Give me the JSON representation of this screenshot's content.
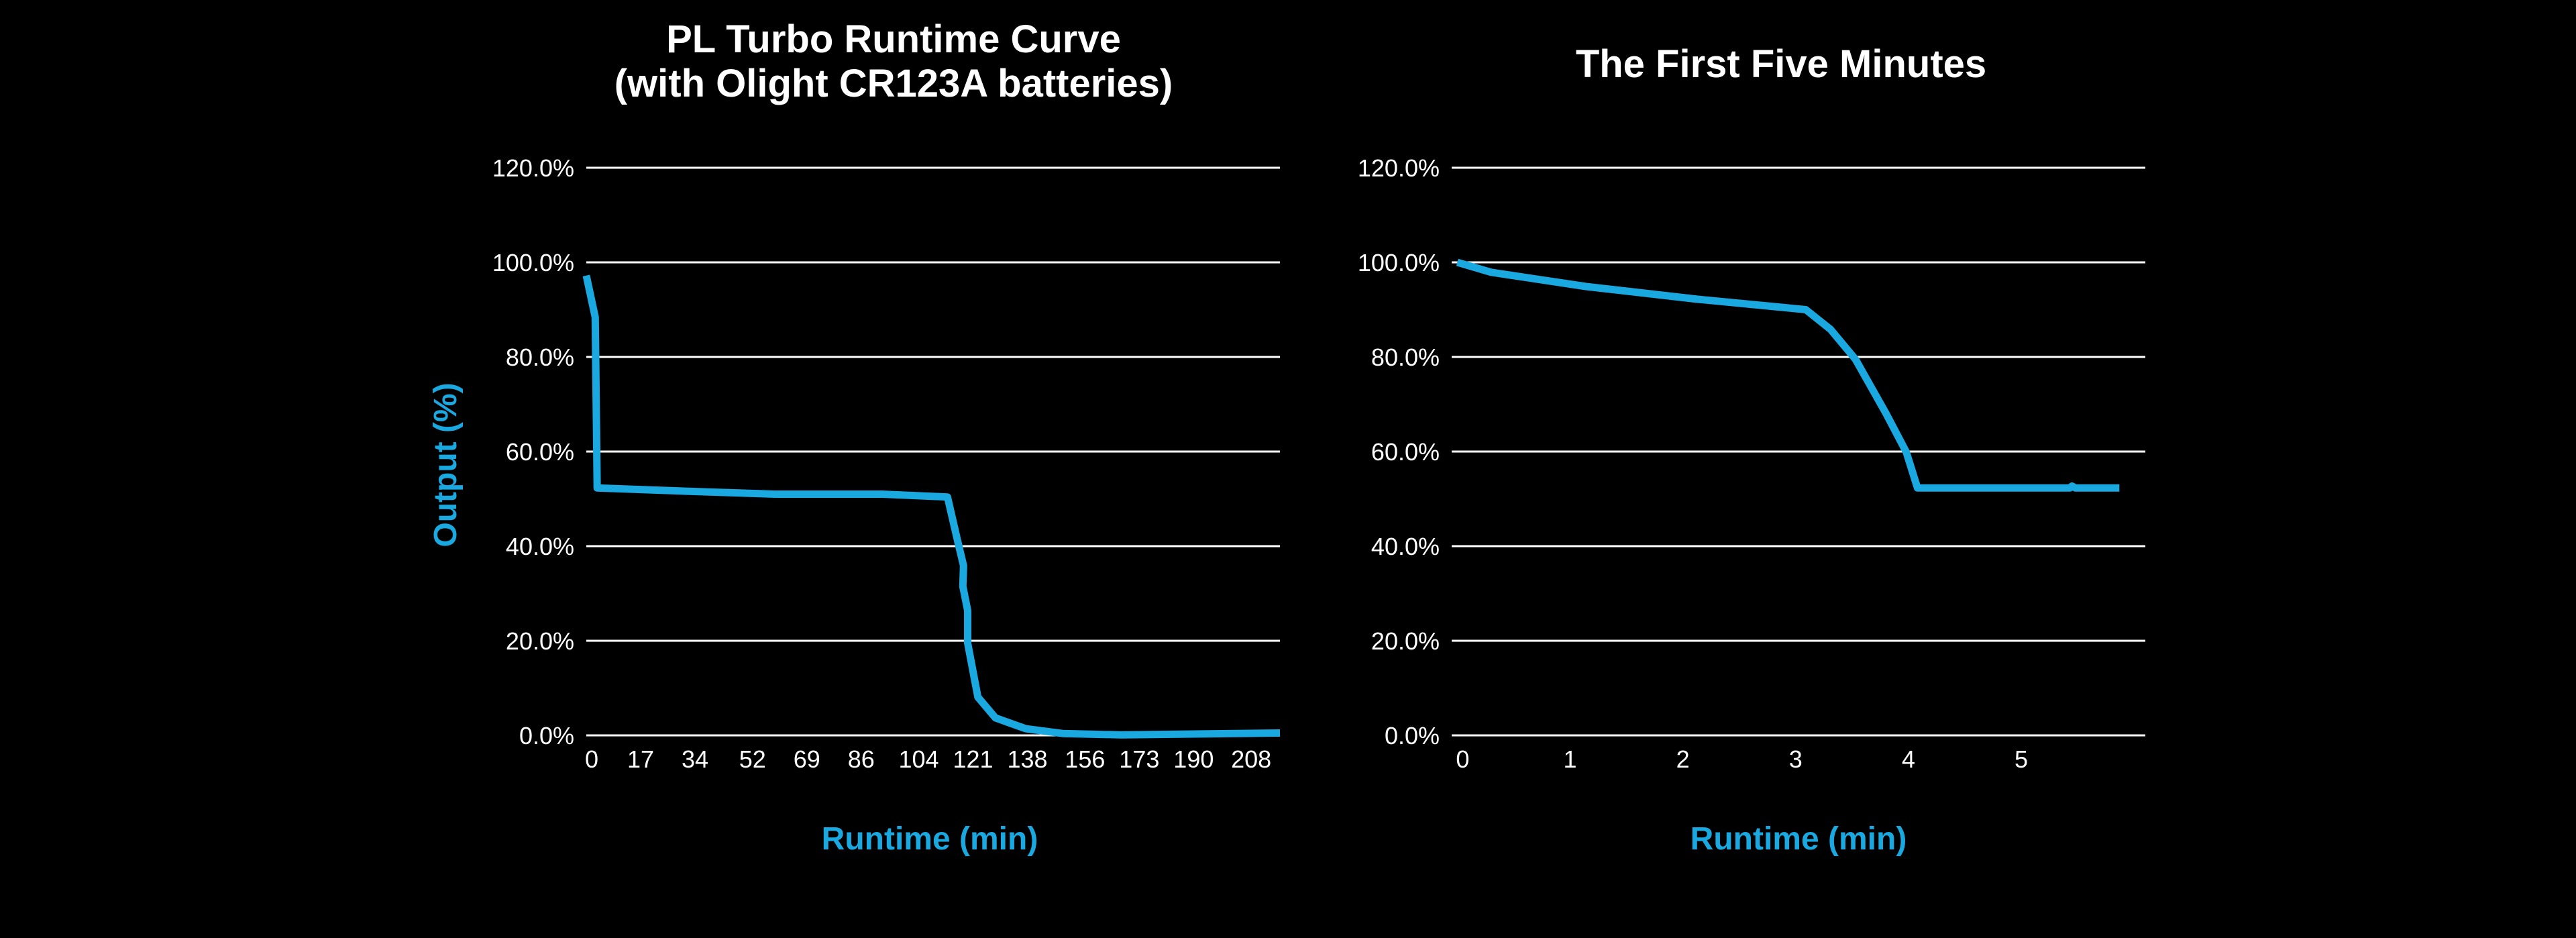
{
  "colors": {
    "background": "#000000",
    "series": "#19a9e0",
    "grid": "#ffffff",
    "text": "#ffffff"
  },
  "chart_data": [
    {
      "type": "line",
      "title": [
        "PL Turbo Runtime Curve",
        "(with Olight CR123A batteries)"
      ],
      "xlabel": "Runtime (min)",
      "ylabel": "Output (%)",
      "xlim": [
        0,
        217
      ],
      "ylim": [
        0,
        120
      ],
      "grid": true,
      "x_ticks": [
        0,
        17,
        34,
        52,
        69,
        86,
        104,
        121,
        138,
        156,
        173,
        190,
        208
      ],
      "y_ticks": [
        "0.0%",
        "20.0%",
        "40.0%",
        "60.0%",
        "80.0%",
        "100.0%",
        "120.0%"
      ],
      "series": [
        {
          "name": "Output",
          "x": [
            0,
            2.8,
            3.4,
            36,
            59,
            92.5,
            113,
            116,
            118,
            117.8,
            119.3,
            119.3,
            122.5,
            128,
            137.5,
            149,
            167.5,
            217
          ],
          "y": [
            97.2,
            88.4,
            52.3,
            51.5,
            51,
            51,
            50.4,
            41.6,
            35.9,
            31.5,
            26.4,
            19.5,
            8.1,
            3.7,
            1.4,
            0.4,
            0.1,
            0.5
          ]
        }
      ]
    },
    {
      "type": "line",
      "title": [
        "The First Five Minutes"
      ],
      "xlabel": "Runtime (min)",
      "ylabel": "",
      "xlim": [
        -0.05,
        6.1
      ],
      "ylim": [
        0,
        120
      ],
      "grid": true,
      "x_ticks": [
        0,
        1,
        2,
        3,
        4,
        5
      ],
      "y_ticks": [
        "0.0%",
        "20.0%",
        "40.0%",
        "60.0%",
        "80.0%",
        "100.0%",
        "120.0%"
      ],
      "series": [
        {
          "name": "Output",
          "x": [
            0,
            0.3,
            1.14,
            2.13,
            3.09,
            3.31,
            3.53,
            3.8,
            3.98,
            4.08,
            5.43,
            5.45,
            5.48,
            5.87
          ],
          "y": [
            100,
            97.9,
            94.9,
            92.2,
            90,
            85.8,
            79.5,
            68.1,
            59.9,
            52.3,
            52.3,
            52.7,
            52.3,
            52.3
          ]
        }
      ]
    }
  ]
}
